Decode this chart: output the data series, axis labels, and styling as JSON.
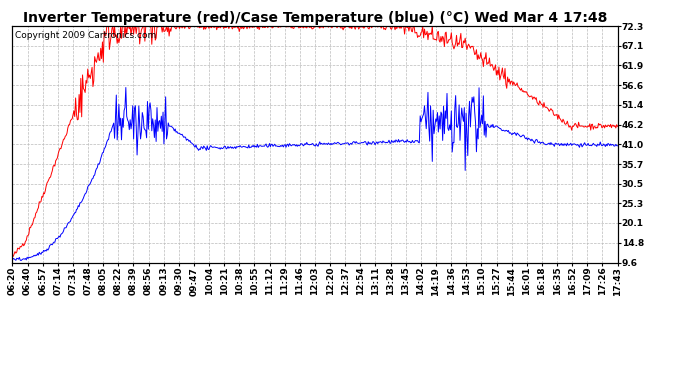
{
  "title": "Inverter Temperature (red)/Case Temperature (blue) (°C) Wed Mar 4 17:48",
  "copyright": "Copyright 2009 Cartronics.com",
  "background_color": "#ffffff",
  "plot_bg_color": "#ffffff",
  "grid_color": "#bbbbbb",
  "red_color": "#ff0000",
  "blue_color": "#0000ff",
  "yticks": [
    9.6,
    14.8,
    20.1,
    25.3,
    30.5,
    35.7,
    41.0,
    46.2,
    51.4,
    56.6,
    61.9,
    67.1,
    72.3
  ],
  "ymin": 9.6,
  "ymax": 72.3,
  "xtick_labels": [
    "06:20",
    "06:40",
    "06:57",
    "07:14",
    "07:31",
    "07:48",
    "08:05",
    "08:22",
    "08:39",
    "08:56",
    "09:13",
    "09:30",
    "09:47",
    "10:04",
    "10:21",
    "10:38",
    "10:55",
    "11:12",
    "11:29",
    "11:46",
    "12:03",
    "12:20",
    "12:37",
    "12:54",
    "13:11",
    "13:28",
    "13:45",
    "14:02",
    "14:19",
    "14:36",
    "14:53",
    "15:10",
    "15:27",
    "15:44",
    "16:01",
    "16:18",
    "16:35",
    "16:52",
    "17:09",
    "17:26",
    "17:43"
  ],
  "title_fontsize": 10,
  "tick_fontsize": 6.5,
  "copyright_fontsize": 6.5
}
